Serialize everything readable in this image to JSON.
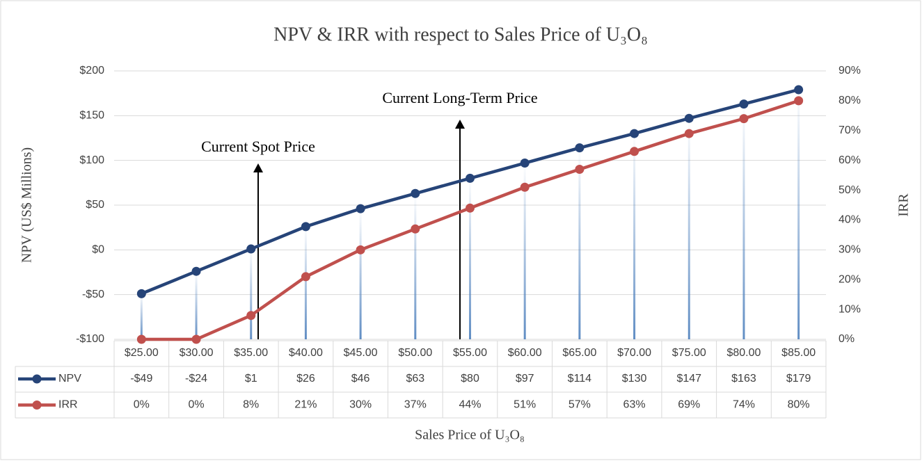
{
  "chart_data": {
    "type": "line",
    "title": "NPV & IRR with respect to Sales Price of U₃O₈",
    "x_label": "Sales Price of U₃O₈",
    "y_label": "NPV (US$ Millions)",
    "y2_label": "IRR",
    "annotations": [
      "Current Spot Price",
      "Current Long-Term Price"
    ],
    "categories": [
      "$25.00",
      "$30.00",
      "$35.00",
      "$40.00",
      "$45.00",
      "$50.00",
      "$55.00",
      "$60.00",
      "$65.00",
      "$70.00",
      "$75.00",
      "$80.00",
      "$85.00"
    ],
    "series": [
      {
        "name": "NPV",
        "color": "#264478",
        "values": [
          -49,
          -24,
          1,
          26,
          46,
          63,
          80,
          97,
          114,
          130,
          147,
          163,
          179
        ],
        "value_labels": [
          "-$49",
          "-$24",
          "$1",
          "$26",
          "$46",
          "$63",
          "$80",
          "$97",
          "$114",
          "$130",
          "$147",
          "$163",
          "$179"
        ]
      },
      {
        "name": "IRR",
        "color": "#c0504d",
        "axis": "y2",
        "values": [
          0,
          0,
          8,
          21,
          30,
          37,
          44,
          51,
          57,
          63,
          69,
          74,
          80
        ],
        "value_labels": [
          "0%",
          "0%",
          "8%",
          "21%",
          "30%",
          "37%",
          "44%",
          "51%",
          "57%",
          "63%",
          "69%",
          "74%",
          "80%"
        ]
      }
    ],
    "ylim": [
      -100,
      200
    ],
    "yticks": [
      {
        "value": -100,
        "label": "-$100"
      },
      {
        "value": -50,
        "label": "-$50"
      },
      {
        "value": 0,
        "label": "$0"
      },
      {
        "value": 50,
        "label": "$50"
      },
      {
        "value": 100,
        "label": "$100"
      },
      {
        "value": 150,
        "label": "$150"
      },
      {
        "value": 200,
        "label": "$200"
      }
    ],
    "y2lim": [
      0,
      90
    ],
    "y2ticks": [
      {
        "value": 0,
        "label": "0%"
      },
      {
        "value": 10,
        "label": "10%"
      },
      {
        "value": 20,
        "label": "20%"
      },
      {
        "value": 30,
        "label": "30%"
      },
      {
        "value": 40,
        "label": "40%"
      },
      {
        "value": 50,
        "label": "50%"
      },
      {
        "value": 60,
        "label": "60%"
      },
      {
        "value": 70,
        "label": "70%"
      },
      {
        "value": 80,
        "label": "80%"
      },
      {
        "value": 90,
        "label": "90%"
      }
    ],
    "grid": true
  }
}
